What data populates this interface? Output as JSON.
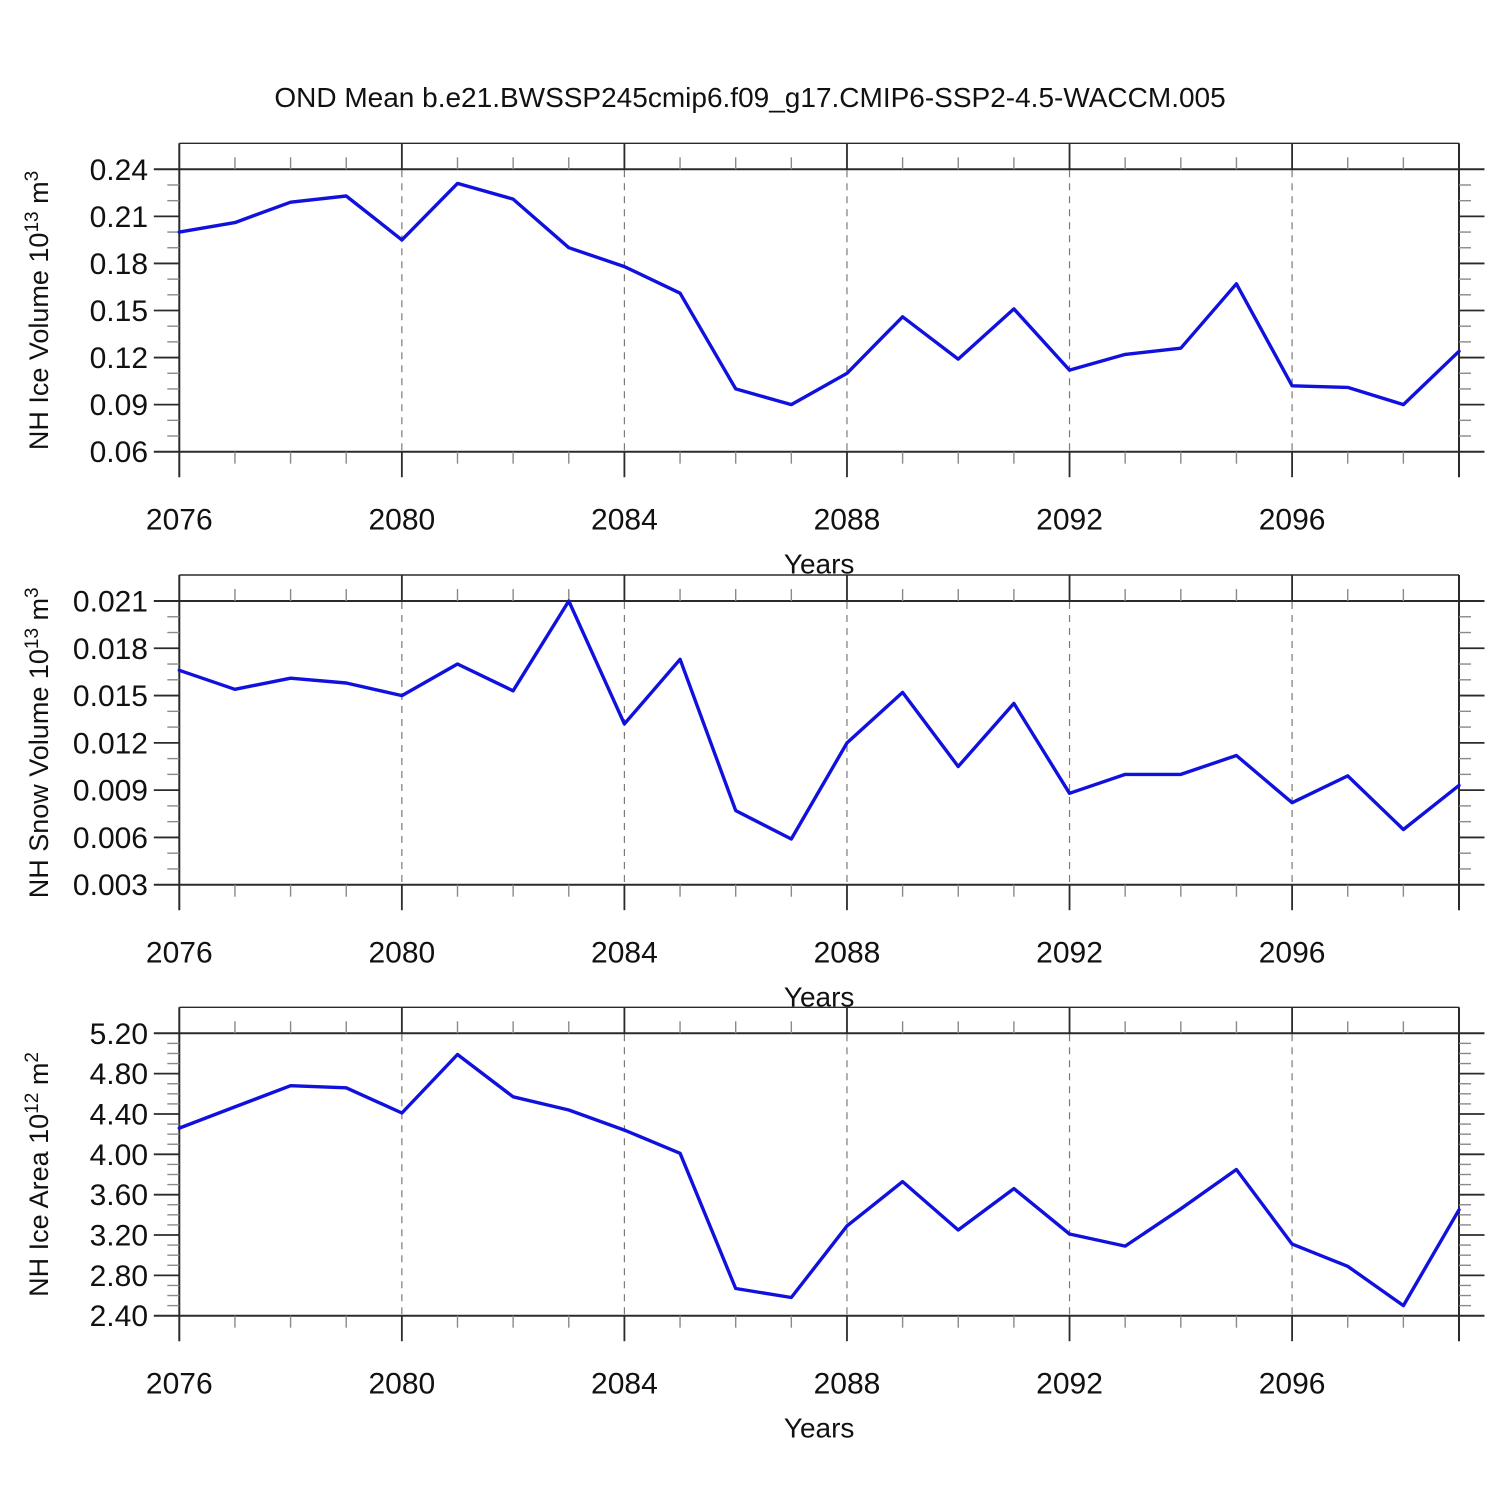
{
  "page": {
    "title": "OND Mean b.e21.BWSSP245cmip6.f09_g17.CMIP6-SSP2-4.5-WACCM.005"
  },
  "colors": {
    "series": "#1111de",
    "axis": "#2b2b2b",
    "minor_tick": "#8a8a8a",
    "grid": "#7a7a7a"
  },
  "chart_data": [
    {
      "type": "line",
      "name": "nh-ice-volume",
      "xlabel": "Years",
      "ylabel_parts": [
        {
          "t": "NH Ice Volume 10"
        },
        {
          "sup": "13"
        },
        {
          "t": " m"
        },
        {
          "sup": "3"
        }
      ],
      "x": [
        2076,
        2077,
        2078,
        2079,
        2080,
        2081,
        2082,
        2083,
        2084,
        2085,
        2086,
        2087,
        2088,
        2089,
        2090,
        2091,
        2092,
        2093,
        2094,
        2095,
        2096,
        2097,
        2098,
        2099
      ],
      "values": [
        0.2,
        0.206,
        0.219,
        0.223,
        0.195,
        0.231,
        0.221,
        0.19,
        0.178,
        0.161,
        0.1,
        0.09,
        0.11,
        0.146,
        0.119,
        0.151,
        0.112,
        0.122,
        0.126,
        0.167,
        0.102,
        0.101,
        0.09,
        0.124
      ],
      "xlim": [
        2076,
        2099
      ],
      "ylim": [
        0.06,
        0.24
      ],
      "yticks": [
        0.06,
        0.09,
        0.12,
        0.15,
        0.18,
        0.21,
        0.24
      ],
      "ytick_labels": [
        "0.06",
        "0.09",
        "0.12",
        "0.15",
        "0.18",
        "0.21",
        "0.24"
      ],
      "y_minor_step": 0.01,
      "xticks": [
        2076,
        2080,
        2084,
        2088,
        2092,
        2096
      ],
      "xtick_labels": [
        "2076",
        "2080",
        "2084",
        "2088",
        "2092",
        "2096"
      ],
      "x_minor_step": 1,
      "xgrid": [
        2080,
        2084,
        2088,
        2092,
        2096
      ],
      "grid_style": "dashed-vertical",
      "legend": "none"
    },
    {
      "type": "line",
      "name": "nh-snow-volume",
      "xlabel": "Years",
      "ylabel_parts": [
        {
          "t": "NH Snow Volume 10"
        },
        {
          "sup": "13"
        },
        {
          "t": " m"
        },
        {
          "sup": "3"
        }
      ],
      "x": [
        2076,
        2077,
        2078,
        2079,
        2080,
        2081,
        2082,
        2083,
        2084,
        2085,
        2086,
        2087,
        2088,
        2089,
        2090,
        2091,
        2092,
        2093,
        2094,
        2095,
        2096,
        2097,
        2098,
        2099
      ],
      "values": [
        0.0166,
        0.0154,
        0.0161,
        0.0158,
        0.015,
        0.017,
        0.0153,
        0.021,
        0.0132,
        0.0173,
        0.0077,
        0.0059,
        0.012,
        0.0152,
        0.0105,
        0.0145,
        0.0088,
        0.01,
        0.01,
        0.0112,
        0.0082,
        0.0099,
        0.0065,
        0.0093
      ],
      "xlim": [
        2076,
        2099
      ],
      "ylim": [
        0.003,
        0.021
      ],
      "yticks": [
        0.003,
        0.006,
        0.009,
        0.012,
        0.015,
        0.018,
        0.021
      ],
      "ytick_labels": [
        "0.003",
        "0.006",
        "0.009",
        "0.012",
        "0.015",
        "0.018",
        "0.021"
      ],
      "y_minor_step": 0.001,
      "xticks": [
        2076,
        2080,
        2084,
        2088,
        2092,
        2096
      ],
      "xtick_labels": [
        "2076",
        "2080",
        "2084",
        "2088",
        "2092",
        "2096"
      ],
      "x_minor_step": 1,
      "xgrid": [
        2080,
        2084,
        2088,
        2092,
        2096
      ],
      "grid_style": "dashed-vertical",
      "legend": "none"
    },
    {
      "type": "line",
      "name": "nh-ice-area",
      "xlabel": "Years",
      "ylabel_parts": [
        {
          "t": "NH Ice Area 10"
        },
        {
          "sup": "12"
        },
        {
          "t": " m"
        },
        {
          "sup": "2"
        }
      ],
      "x": [
        2076,
        2077,
        2078,
        2079,
        2080,
        2081,
        2082,
        2083,
        2084,
        2085,
        2086,
        2087,
        2088,
        2089,
        2090,
        2091,
        2092,
        2093,
        2094,
        2095,
        2096,
        2097,
        2098,
        2099
      ],
      "values": [
        4.26,
        4.47,
        4.68,
        4.66,
        4.41,
        4.99,
        4.57,
        4.44,
        4.24,
        4.01,
        2.67,
        2.58,
        3.29,
        3.73,
        3.25,
        3.66,
        3.21,
        3.09,
        3.46,
        3.85,
        3.11,
        2.89,
        2.5,
        3.45
      ],
      "xlim": [
        2076,
        2099
      ],
      "ylim": [
        2.4,
        5.2
      ],
      "yticks": [
        2.4,
        2.8,
        3.2,
        3.6,
        4.0,
        4.4,
        4.8,
        5.2
      ],
      "ytick_labels": [
        "2.40",
        "2.80",
        "3.20",
        "3.60",
        "4.00",
        "4.40",
        "4.80",
        "5.20"
      ],
      "y_minor_step": 0.1,
      "xticks": [
        2076,
        2080,
        2084,
        2088,
        2092,
        2096
      ],
      "xtick_labels": [
        "2076",
        "2080",
        "2084",
        "2088",
        "2092",
        "2096"
      ],
      "x_minor_step": 1,
      "xgrid": [
        2080,
        2084,
        2088,
        2092,
        2096
      ],
      "grid_style": "dashed-vertical",
      "legend": "none"
    }
  ]
}
